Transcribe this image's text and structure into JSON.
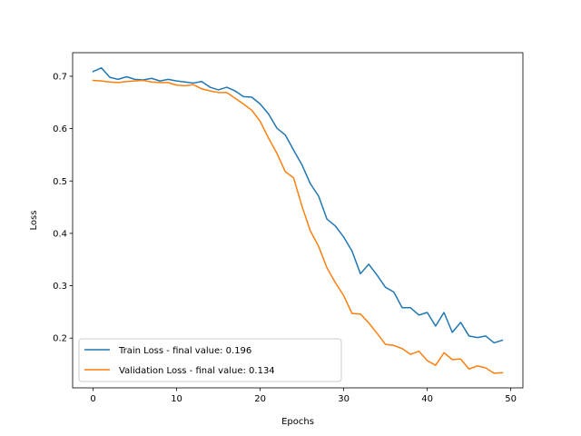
{
  "chart_data": {
    "type": "line",
    "title": "",
    "xlabel": "Epochs",
    "ylabel": "Loss",
    "xlim": [
      -2.45,
      51.45
    ],
    "ylim": [
      0.105,
      0.745
    ],
    "xticks": [
      0,
      10,
      20,
      30,
      40,
      50
    ],
    "yticks": [
      0.2,
      0.3,
      0.4,
      0.5,
      0.6,
      0.7
    ],
    "xtick_labels": [
      "0",
      "10",
      "20",
      "30",
      "40",
      "50"
    ],
    "ytick_labels": [
      "0.2",
      "0.3",
      "0.4",
      "0.5",
      "0.6",
      "0.7"
    ],
    "grid": false,
    "legend_position": "lower-left",
    "x": [
      0,
      1,
      2,
      3,
      4,
      5,
      6,
      7,
      8,
      9,
      10,
      11,
      12,
      13,
      14,
      15,
      16,
      17,
      18,
      19,
      20,
      21,
      22,
      23,
      24,
      25,
      26,
      27,
      28,
      29,
      30,
      31,
      32,
      33,
      34,
      35,
      36,
      37,
      38,
      39,
      40,
      41,
      42,
      43,
      44,
      45,
      46,
      47,
      48,
      49
    ],
    "series": [
      {
        "name": "Train Loss - final value: 0.196",
        "color": "#1f77b4",
        "values": [
          0.709,
          0.716,
          0.698,
          0.694,
          0.699,
          0.694,
          0.693,
          0.696,
          0.691,
          0.694,
          0.691,
          0.689,
          0.687,
          0.69,
          0.679,
          0.674,
          0.679,
          0.672,
          0.661,
          0.66,
          0.647,
          0.628,
          0.601,
          0.588,
          0.559,
          0.531,
          0.495,
          0.471,
          0.427,
          0.414,
          0.393,
          0.366,
          0.323,
          0.341,
          0.32,
          0.297,
          0.288,
          0.258,
          0.258,
          0.244,
          0.249,
          0.223,
          0.249,
          0.211,
          0.23,
          0.204,
          0.201,
          0.204,
          0.191,
          0.196
        ]
      },
      {
        "name": "Validation Loss - final value: 0.134",
        "color": "#ff7f0e",
        "values": [
          0.692,
          0.691,
          0.689,
          0.688,
          0.69,
          0.691,
          0.692,
          0.689,
          0.688,
          0.688,
          0.683,
          0.682,
          0.684,
          0.676,
          0.672,
          0.669,
          0.669,
          0.658,
          0.647,
          0.635,
          0.614,
          0.582,
          0.553,
          0.518,
          0.506,
          0.452,
          0.405,
          0.375,
          0.334,
          0.306,
          0.281,
          0.247,
          0.246,
          0.229,
          0.209,
          0.188,
          0.186,
          0.18,
          0.169,
          0.175,
          0.157,
          0.148,
          0.172,
          0.159,
          0.16,
          0.141,
          0.147,
          0.143,
          0.133,
          0.134
        ]
      }
    ]
  }
}
